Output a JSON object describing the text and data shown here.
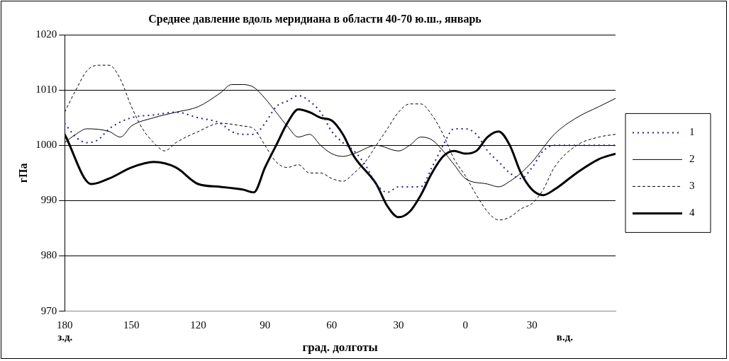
{
  "chart_data": {
    "type": "line",
    "title": "Среднее давление вдоль меридиана в области 40-70 ю.ш., январь",
    "xlabel": "град. долготы",
    "ylabel": "гПа",
    "annotations": [
      "з.д.",
      "в.д."
    ],
    "xlim": [
      -180,
      67.5
    ],
    "xticks": [
      {
        "value": -180,
        "label": "180"
      },
      {
        "value": -150,
        "label": "150"
      },
      {
        "value": -120,
        "label": "120"
      },
      {
        "value": -90,
        "label": "90"
      },
      {
        "value": -60,
        "label": "60"
      },
      {
        "value": -30,
        "label": "30"
      },
      0,
      30
    ],
    "ylim": [
      970,
      1020
    ],
    "yticks": [
      970,
      980,
      990,
      1000,
      1010,
      1020
    ],
    "grid": "y",
    "legend": "right",
    "marker": "none",
    "series": [
      {
        "name": "1",
        "color": "#1f1f99",
        "line_style": "dotted",
        "x": [
          -180,
          -175,
          -170,
          -165,
          -160,
          -150,
          -140,
          -130,
          -120,
          -110,
          -105,
          -100,
          -95,
          -90,
          -85,
          -80,
          -75,
          -70,
          -65,
          -60,
          -55,
          -50,
          -45,
          -40,
          -35,
          -30,
          -20,
          -15,
          -10,
          -5,
          0,
          5,
          10,
          15,
          20,
          25,
          30,
          35,
          40,
          50,
          60,
          67.5
        ],
        "values": [
          1004,
          1001.5,
          1000.5,
          1001,
          1003,
          1005,
          1005.5,
          1006,
          1005,
          1004,
          1002.5,
          1002,
          1002,
          1004,
          1007,
          1008,
          1009,
          1008,
          1006,
          1002.5,
          1000.5,
          999,
          996.5,
          993,
          991.5,
          992.5,
          992.5,
          996,
          1000,
          1003,
          1003,
          1002,
          999,
          997,
          995,
          994,
          996,
          999,
          1000,
          1000,
          1000,
          1000
        ]
      },
      {
        "name": "2",
        "color": "#000000",
        "line_style": "solid",
        "x": [
          -180,
          -175,
          -170,
          -160,
          -155,
          -150,
          -140,
          -130,
          -120,
          -110,
          -105,
          -100,
          -95,
          -90,
          -85,
          -80,
          -75,
          -70,
          -65,
          -60,
          -55,
          -50,
          -40,
          -30,
          -25,
          -20,
          -15,
          -10,
          -5,
          0,
          10,
          15,
          20,
          25,
          30,
          40,
          50,
          60,
          67.5
        ],
        "values": [
          1000.5,
          1002,
          1003,
          1002.5,
          1001.5,
          1003.5,
          1005,
          1006,
          1007,
          1009.5,
          1011,
          1011,
          1010.5,
          1008.5,
          1006,
          1003.5,
          1001.5,
          1002,
          1000,
          998.5,
          998,
          998.5,
          1000,
          999,
          1000,
          1001.5,
          1001,
          999,
          996.5,
          994,
          993,
          992.5,
          993.5,
          995,
          997,
          1002,
          1005,
          1007,
          1008.5
        ]
      },
      {
        "name": "3",
        "color": "#000000",
        "line_style": "dashed",
        "x": [
          -180,
          -175,
          -170,
          -165,
          -160,
          -155,
          -150,
          -145,
          -140,
          -135,
          -130,
          -120,
          -110,
          -100,
          -95,
          -90,
          -85,
          -80,
          -75,
          -70,
          -65,
          -60,
          -55,
          -50,
          -45,
          -40,
          -35,
          -30,
          -25,
          -20,
          -15,
          -10,
          -5,
          0,
          5,
          10,
          15,
          20,
          25,
          30,
          35,
          40,
          50,
          60,
          67.5
        ],
        "values": [
          1006,
          1010,
          1013.5,
          1014.5,
          1014.5,
          1012,
          1007,
          1003,
          1000.5,
          999,
          1000.5,
          1002.5,
          1004,
          1003.5,
          1003,
          1000,
          997,
          996,
          996.5,
          995,
          995,
          994,
          993.5,
          995,
          997,
          1000,
          1003,
          1006,
          1007.5,
          1007.5,
          1005.5,
          1002,
          997.5,
          994.5,
          991,
          988,
          986.5,
          987,
          988.5,
          989.5,
          992,
          996,
          1000,
          1001.5,
          1002
        ]
      },
      {
        "name": "4",
        "color": "#000000",
        "line_style": "solid",
        "x": [
          -180,
          -168,
          -160,
          -150,
          -140,
          -130,
          -120,
          -110,
          -100,
          -95,
          -90,
          -85,
          -80,
          -75,
          -70,
          -65,
          -60,
          -55,
          -50,
          -40,
          -35,
          -30,
          -25,
          -20,
          -15,
          -10,
          -5,
          0,
          5,
          10,
          15,
          20,
          25,
          30,
          35,
          40,
          50,
          60,
          67.5
        ],
        "values": [
          1002,
          993,
          994,
          996,
          997,
          996,
          993,
          992.5,
          992,
          991.5,
          996,
          1000,
          1004,
          1006.5,
          1006,
          1005,
          1004.5,
          1002,
          998,
          993,
          989,
          987,
          988,
          991,
          995,
          998,
          999,
          998.5,
          999,
          1001.5,
          1002.5,
          1000,
          995,
          992,
          991,
          992,
          995,
          997.5,
          998.5
        ]
      }
    ]
  }
}
